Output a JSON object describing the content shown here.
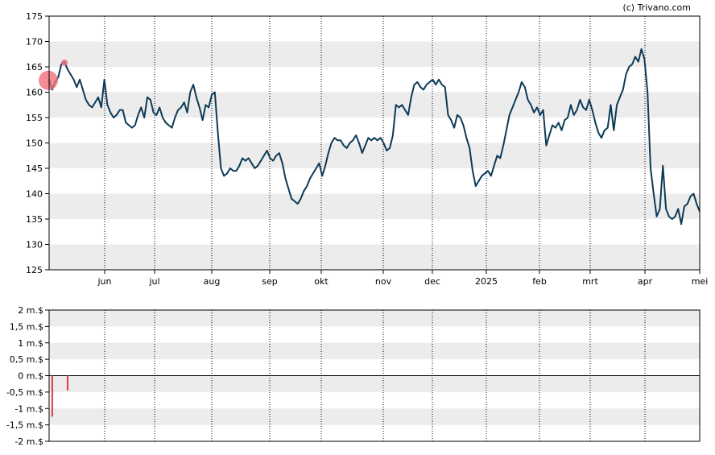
{
  "credit": "(c) Trivano.com",
  "colors": {
    "line": "#0d3a57",
    "band": "#ececec",
    "frame": "#000000",
    "marker": "#f0707a",
    "volume_bar": "#e23a3a"
  },
  "chart_data": [
    {
      "type": "line",
      "name": "price",
      "ylim": [
        125,
        175
      ],
      "yticks": [
        175,
        170,
        165,
        160,
        155,
        150,
        145,
        140,
        135,
        130,
        125
      ],
      "xticks": [
        "jun",
        "jul",
        "aug",
        "sep",
        "okt",
        "nov",
        "dec",
        "2025",
        "feb",
        "mrt",
        "apr",
        "mei"
      ],
      "grid": true,
      "series": [
        {
          "values": [
            162.5,
            160.5,
            162,
            163,
            165.5,
            166,
            164.5,
            163.5,
            162.5,
            161,
            162.5,
            160.5,
            158.5,
            157.5,
            157,
            158,
            159,
            157,
            162.5,
            157.5,
            156,
            155,
            155.5,
            156.5,
            156.5,
            154,
            153.5,
            153,
            153.5,
            155.5,
            157,
            155,
            159,
            158.5,
            156,
            155.5,
            157,
            155,
            154,
            153.5,
            153,
            155,
            156.5,
            157,
            158,
            156,
            160,
            161.5,
            159,
            157,
            154.5,
            157.5,
            157,
            159.5,
            160,
            152,
            145,
            143.5,
            144,
            145,
            144.5,
            144.5,
            145.5,
            147,
            146.5,
            147,
            146,
            145,
            145.5,
            146.5,
            147.5,
            148.5,
            147,
            146.5,
            147.5,
            148,
            146,
            143,
            141,
            139,
            138.5,
            138,
            139,
            140.5,
            141.5,
            143,
            144,
            145,
            146,
            143.5,
            145.5,
            148,
            150,
            151,
            150.5,
            150.5,
            149.5,
            149,
            150,
            150.5,
            151.5,
            150,
            148,
            149.5,
            151,
            150.5,
            151,
            150.5,
            151,
            150,
            148.5,
            149,
            151.5,
            157.5,
            157,
            157.5,
            156.5,
            155.5,
            159,
            161.5,
            162,
            161,
            160.5,
            161.5,
            162,
            162.5,
            161.5,
            162.5,
            161.5,
            161,
            155.5,
            154.5,
            153,
            155.5,
            155,
            153.5,
            151,
            149,
            144.5,
            141.5,
            142.5,
            143.5,
            144,
            144.5,
            143.5,
            145.5,
            147.5,
            147,
            149.5,
            152.5,
            155.5,
            157,
            158.5,
            160,
            162,
            161,
            158.5,
            157.5,
            156,
            157,
            155.5,
            156.5,
            149.5,
            151.5,
            153.5,
            153,
            154,
            152.5,
            154.5,
            155,
            157.5,
            155.5,
            156.5,
            158.5,
            157,
            156.5,
            158.5,
            156.5,
            154,
            152,
            151,
            152.5,
            153,
            157.5,
            152.5,
            157.5,
            159,
            160.5,
            163.5,
            165,
            165.5,
            167,
            166,
            168.5,
            166.5,
            160,
            145,
            140,
            135.5,
            137,
            145.5,
            137,
            135.5,
            135,
            135.5,
            137,
            134,
            137.5,
            138,
            139.5,
            140,
            138,
            136.5
          ]
        }
      ]
    },
    {
      "type": "bar",
      "name": "volume",
      "ylim": [
        -2,
        2
      ],
      "yticks": [
        "2 m.$",
        "1,5 m.$",
        "1 m.$",
        "0,5 m.$",
        "0 m.$",
        "-0,5 m.$",
        "-1 m.$",
        "-1,5 m.$",
        "-2 m.$"
      ],
      "grid": true,
      "bars": [
        {
          "x": 0.5,
          "value": -1.25
        },
        {
          "x": 5.5,
          "value": -0.45
        }
      ]
    }
  ]
}
